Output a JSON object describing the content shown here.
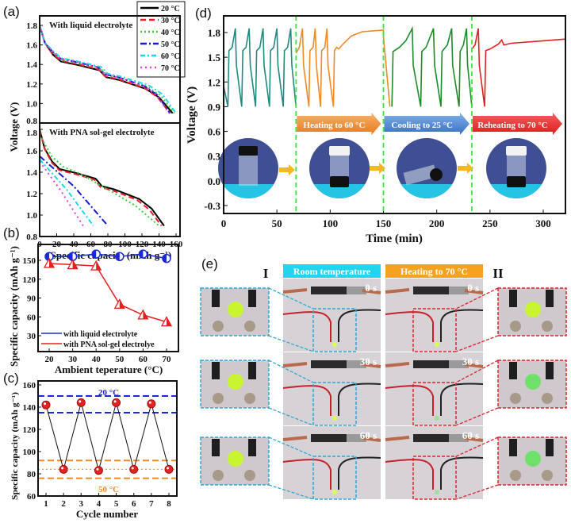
{
  "panel_labels": [
    "(a)",
    "(b)",
    "(c)",
    "(d)",
    "(e)"
  ],
  "colors": {
    "c20": "#000000",
    "c30": "#e8202a",
    "c40": "#3ccf3c",
    "c50": "#1a1ac8",
    "c60": "#1ed7e6",
    "c70": "#e040e0",
    "teal": "#1f8a80",
    "orange": "#f08a24",
    "green": "#1e8a2a",
    "red": "#e32020",
    "dash_green": "#39e639",
    "blue_box": "#2fa8d8",
    "red_box": "#d9262c"
  },
  "chart_data": [
    {
      "id": "a",
      "type": "line",
      "xlabel": "Specific capacity (mAh g⁻¹)",
      "ylabel": "Voltage (V)",
      "xticks": [
        "0",
        "20",
        "40",
        "60",
        "80",
        "100",
        "120",
        "140",
        "160"
      ],
      "yticks": [
        "0.8",
        "1.0",
        "1.2",
        "1.4",
        "1.6",
        "1.8"
      ],
      "xlim": [
        0,
        165
      ],
      "ylim": [
        0.8,
        1.9
      ],
      "legend_position": "top-right",
      "legend": [
        "20 °C",
        "30 °C",
        "40 °C",
        "50 °C",
        "60 °C",
        "70 °C"
      ],
      "subplots": [
        {
          "title": "With liquid electrolyte",
          "series": [
            {
              "name": "20 °C",
              "capacity": 156,
              "profile": "plateau",
              "offset": 0
            },
            {
              "name": "30 °C",
              "capacity": 153,
              "profile": "plateau",
              "offset": 0.01
            },
            {
              "name": "40 °C",
              "capacity": 158,
              "profile": "plateau",
              "offset": 0.02
            },
            {
              "name": "50 °C",
              "capacity": 153,
              "profile": "plateau",
              "offset": 0.03
            },
            {
              "name": "60 °C",
              "capacity": 160,
              "profile": "plateau",
              "offset": 0.035
            },
            {
              "name": "70 °C",
              "capacity": 152,
              "profile": "plateau",
              "offset": 0.03
            }
          ]
        },
        {
          "title": "With PNA sol-gel electrolyte",
          "series": [
            {
              "name": "20 °C",
              "capacity": 146,
              "profile": "plateau",
              "offset": 0
            },
            {
              "name": "30 °C",
              "capacity": 143,
              "profile": "plateau",
              "offset": -0.01
            },
            {
              "name": "40 °C",
              "capacity": 140,
              "profile": "sloped",
              "start": 1.75
            },
            {
              "name": "50 °C",
              "capacity": 80,
              "profile": "linear",
              "start": 1.55
            },
            {
              "name": "60 °C",
              "capacity": 63,
              "profile": "linear",
              "start": 1.52
            },
            {
              "name": "70 °C",
              "capacity": 51,
              "profile": "linear",
              "start": 1.5
            }
          ]
        }
      ]
    },
    {
      "id": "b",
      "type": "line",
      "xlabel": "Ambient teperature (°C)",
      "ylabel": "Specific capacity (mAh g⁻¹)",
      "categories": [
        20,
        30,
        40,
        50,
        60,
        70
      ],
      "xticks": [
        "20",
        "30",
        "40",
        "50",
        "60",
        "70"
      ],
      "yticks": [
        "30",
        "60",
        "90",
        "120",
        "150"
      ],
      "ylim": [
        4.7,
        175.3
      ],
      "legend_position": "bottom-left",
      "series": [
        {
          "name": "with liquid electrolyte",
          "values": [
            156,
            156,
            160,
            156,
            160,
            153
          ]
        },
        {
          "name": "with PNA sol-gel electrolye",
          "values": [
            145,
            143,
            141,
            80,
            63,
            52
          ]
        }
      ]
    },
    {
      "id": "c",
      "type": "line",
      "xlabel": "Cycle number",
      "ylabel": "Specific capacity (mAh g⁻¹)",
      "x": [
        1,
        2,
        3,
        4,
        5,
        6,
        7,
        8
      ],
      "values": [
        142,
        84,
        144,
        83,
        144,
        84,
        143,
        84
      ],
      "xticks": [
        "1",
        "2",
        "3",
        "4",
        "5",
        "6",
        "7",
        "8"
      ],
      "yticks": [
        "60",
        "80",
        "100",
        "120",
        "140",
        "160"
      ],
      "ylim": [
        60,
        163.6
      ],
      "bands": [
        {
          "label": "20 °C",
          "low": 135,
          "high": 150
        },
        {
          "label": "50 °C",
          "low": 76,
          "high": 92,
          "mid": 84
        }
      ]
    },
    {
      "id": "d",
      "type": "line",
      "xlabel": "Time (min)",
      "ylabel": "Voltage (V)",
      "xticks": [
        "0",
        "50",
        "100",
        "150",
        "200",
        "250",
        "300"
      ],
      "yticks": [
        "-0.3",
        "0.0",
        "0.3",
        "0.6",
        "0.9",
        "1.2",
        "1.5",
        "1.8"
      ],
      "xlim": [
        0,
        320.8
      ],
      "ylim": [
        -0.396,
        2.0
      ],
      "dividers": [
        68,
        150,
        233
      ],
      "stages": [
        "Heating to 60 °C",
        "Cooling to 25 °C",
        "Reheating to 70 °C"
      ],
      "series": [
        {
          "name": "initial",
          "points": [
            [
              0,
              1.15
            ],
            [
              4,
              0.9
            ],
            [
              5,
              1.58
            ],
            [
              8,
              1.62
            ],
            [
              11,
              1.85
            ],
            [
              12,
              1.4
            ],
            [
              17,
              0.9
            ],
            [
              18,
              1.58
            ],
            [
              21,
              1.62
            ],
            [
              24,
              1.85
            ],
            [
              25,
              1.4
            ],
            [
              30,
              0.9
            ],
            [
              31,
              1.58
            ],
            [
              34,
              1.62
            ],
            [
              37,
              1.85
            ],
            [
              38,
              1.4
            ],
            [
              43,
              0.9
            ],
            [
              44,
              1.58
            ],
            [
              47,
              1.62
            ],
            [
              50,
              1.85
            ],
            [
              51,
              1.4
            ],
            [
              56,
              0.9
            ],
            [
              57,
              1.58
            ],
            [
              60,
              1.62
            ],
            [
              63,
              1.85
            ],
            [
              64,
              1.4
            ],
            [
              68,
              0.9
            ]
          ]
        },
        {
          "name": "heating",
          "points": [
            [
              68,
              1.55
            ],
            [
              71,
              1.62
            ],
            [
              74,
              1.85
            ],
            [
              75,
              1.4
            ],
            [
              80,
              0.9
            ],
            [
              81,
              1.58
            ],
            [
              84,
              1.62
            ],
            [
              86,
              1.85
            ],
            [
              87,
              1.4
            ],
            [
              91,
              0.9
            ],
            [
              92,
              1.58
            ],
            [
              95,
              1.62
            ],
            [
              97,
              1.85
            ],
            [
              98,
              1.4
            ],
            [
              103,
              0.9
            ],
            [
              104,
              1.58
            ],
            [
              106,
              1.62
            ],
            [
              108,
              1.6
            ],
            [
              112,
              1.66
            ],
            [
              120,
              1.76
            ],
            [
              130,
              1.81
            ],
            [
              150,
              1.83
            ],
            [
              150,
              1.75
            ],
            [
              156,
              0.9
            ]
          ]
        },
        {
          "name": "cooling",
          "points": [
            [
              158,
              0.9
            ],
            [
              159,
              1.57
            ],
            [
              165,
              1.62
            ],
            [
              171,
              1.7
            ],
            [
              177,
              1.85
            ],
            [
              178,
              1.4
            ],
            [
              185,
              0.9
            ],
            [
              186,
              1.57
            ],
            [
              190,
              1.62
            ],
            [
              197,
              1.85
            ],
            [
              198,
              1.4
            ],
            [
              204,
              0.9
            ],
            [
              205,
              1.57
            ],
            [
              210,
              1.65
            ],
            [
              214,
              1.85
            ],
            [
              215,
              1.4
            ],
            [
              221,
              0.9
            ],
            [
              222,
              1.57
            ],
            [
              225,
              1.65
            ],
            [
              228,
              1.85
            ],
            [
              229,
              1.4
            ],
            [
              233,
              0.9
            ]
          ]
        },
        {
          "name": "reheating",
          "points": [
            [
              233,
              1.6
            ],
            [
              236,
              1.65
            ],
            [
              239,
              1.85
            ],
            [
              240,
              1.4
            ],
            [
              245,
              0.9
            ],
            [
              246,
              1.58
            ],
            [
              250,
              1.6
            ],
            [
              258,
              1.66
            ],
            [
              261,
              1.71
            ],
            [
              263,
              1.65
            ],
            [
              270,
              1.67
            ],
            [
              300,
              1.7
            ],
            [
              320,
              1.72
            ]
          ]
        }
      ]
    }
  ],
  "panel_e": {
    "column_headers": [
      "Room temperature",
      "Heating to 70 °C"
    ],
    "side_labels": [
      "I",
      "II"
    ],
    "times": [
      "0 s",
      "30 s",
      "60 s"
    ]
  }
}
